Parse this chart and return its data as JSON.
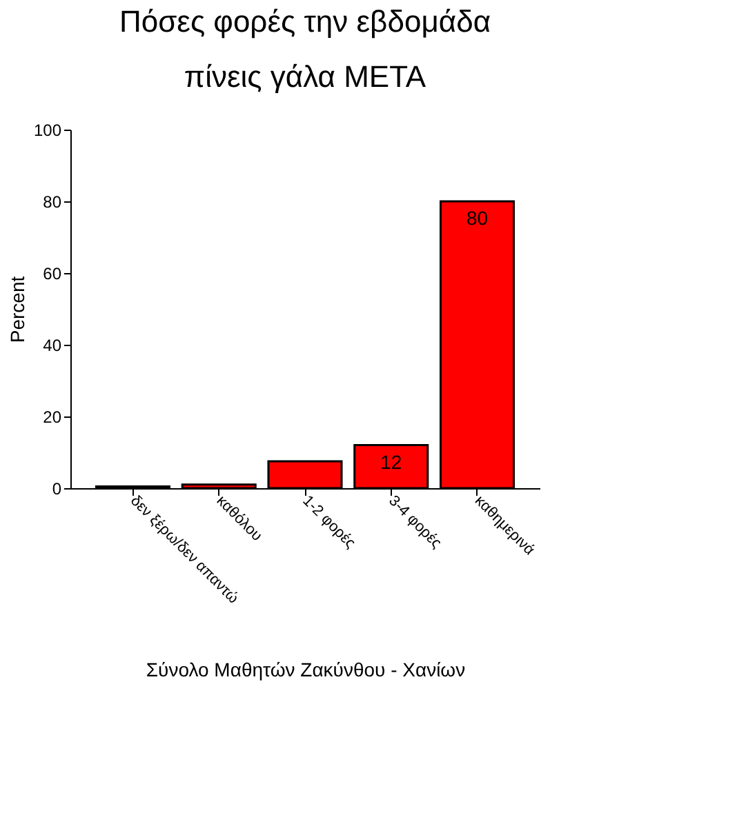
{
  "chart_data": {
    "type": "bar",
    "title": [
      "Πόσες φορές την εβδομάδα",
      "πίνεις γάλα ΜΕΤΑ"
    ],
    "ylabel": "Percent",
    "xlabel": "Σύνολο Μαθητών Ζακύνθου - Χανίων",
    "categories": [
      "δεν ξέρω/δεν απαντώ",
      "καθόλου",
      "1-2 φορές",
      "3-4 φορές",
      "καθημερινά"
    ],
    "values": [
      0.5,
      1,
      7.5,
      12,
      80
    ],
    "color": "#ff0000",
    "value_labels": [
      null,
      null,
      null,
      "12",
      "80"
    ],
    "ylim": [
      0,
      100
    ],
    "yticks": [
      0,
      20,
      40,
      60,
      80,
      100
    ],
    "grid": false
  }
}
